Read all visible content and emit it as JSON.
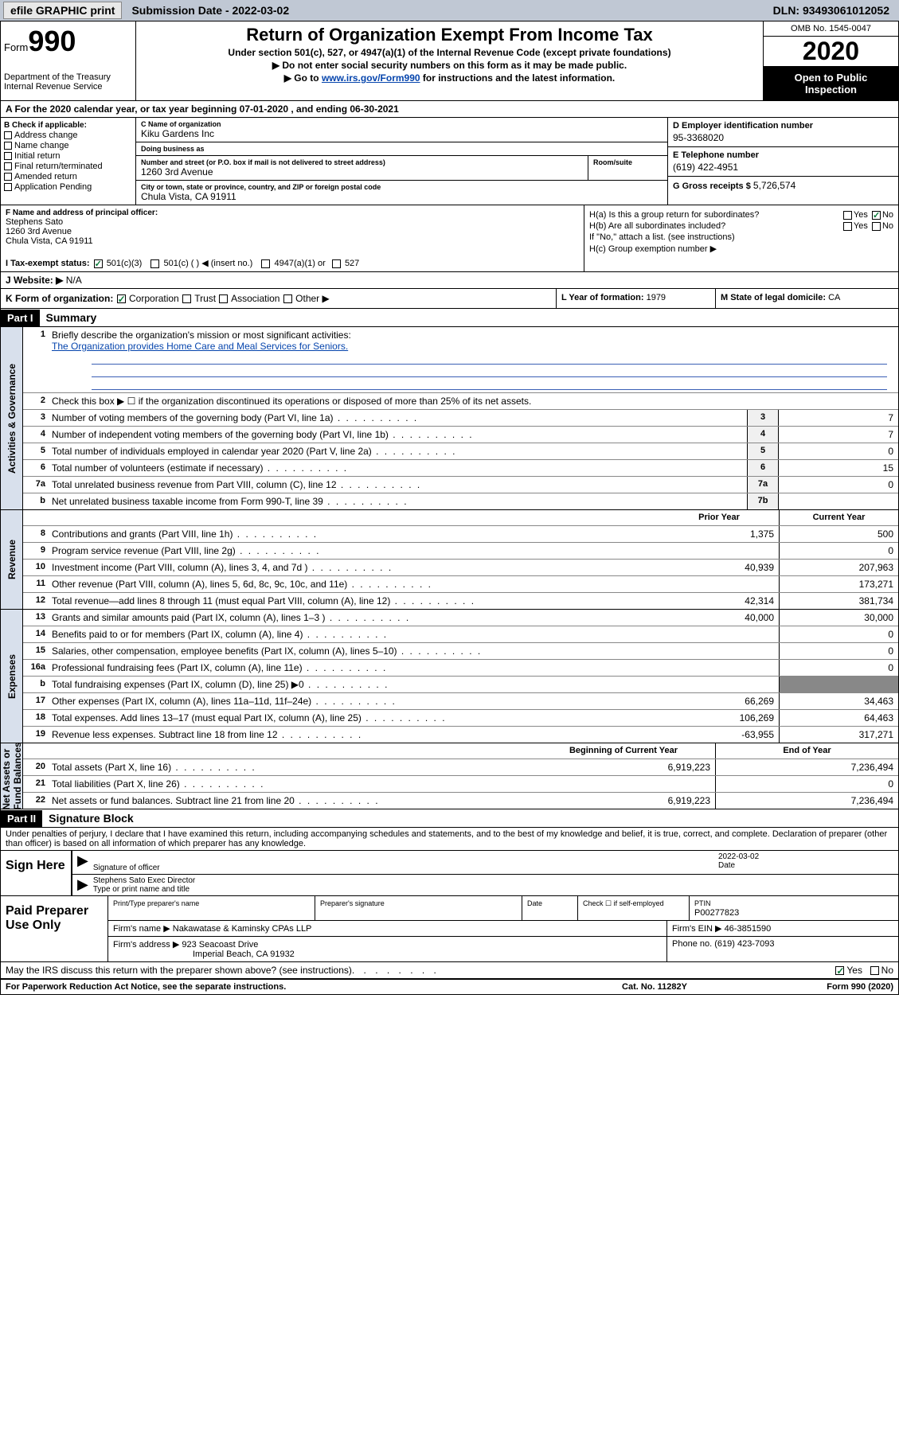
{
  "top": {
    "efile": "efile GRAPHIC print",
    "submission": "Submission Date - 2022-03-02",
    "dln": "DLN: 93493061012052"
  },
  "header": {
    "form_label": "Form",
    "form_num": "990",
    "dept": "Department of the Treasury\nInternal Revenue Service",
    "title": "Return of Organization Exempt From Income Tax",
    "sub1": "Under section 501(c), 527, or 4947(a)(1) of the Internal Revenue Code (except private foundations)",
    "sub2": "▶ Do not enter social security numbers on this form as it may be made public.",
    "sub3_pre": "▶ Go to ",
    "sub3_link": "www.irs.gov/Form990",
    "sub3_post": " for instructions and the latest information.",
    "omb": "OMB No. 1545-0047",
    "year": "2020",
    "open": "Open to Public Inspection"
  },
  "yearline": "A  For the 2020 calendar year, or tax year beginning 07-01-2020    , and ending 06-30-2021",
  "B": {
    "label": "B Check if applicable:",
    "opts": [
      "Address change",
      "Name change",
      "Initial return",
      "Final return/terminated",
      "Amended return",
      "Application Pending"
    ]
  },
  "C": {
    "name_lbl": "C Name of organization",
    "name_val": "Kiku Gardens Inc",
    "dba_lbl": "Doing business as",
    "dba_val": "",
    "street_lbl": "Number and street (or P.O. box if mail is not delivered to street address)",
    "street_val": "1260 3rd Avenue",
    "room_lbl": "Room/suite",
    "city_lbl": "City or town, state or province, country, and ZIP or foreign postal code",
    "city_val": "Chula Vista, CA  91911"
  },
  "D": {
    "lbl": "D Employer identification number",
    "val": "95-3368020"
  },
  "E": {
    "lbl": "E Telephone number",
    "val": "(619) 422-4951"
  },
  "G": {
    "lbl": "G Gross receipts $",
    "val": "5,726,574"
  },
  "F": {
    "lbl": "F Name and address of principal officer:",
    "name": "Stephens Sato",
    "addr1": "1260 3rd Avenue",
    "addr2": "Chula Vista, CA  91911"
  },
  "H": {
    "a": "H(a)  Is this a group return for subordinates?",
    "a_no": true,
    "b": "H(b)  Are all subordinates included?",
    "b_note": "If \"No,\" attach a list. (see instructions)",
    "c": "H(c)  Group exemption number ▶"
  },
  "I": {
    "lbl": "I    Tax-exempt status:",
    "opt1": "501(c)(3)",
    "opt2": "501(c) (  ) ◀ (insert no.)",
    "opt3": "4947(a)(1) or",
    "opt4": "527"
  },
  "J": {
    "lbl": "J    Website: ▶",
    "val": "N/A"
  },
  "K": {
    "lbl": "K Form of organization:",
    "corp": "Corporation",
    "trust": "Trust",
    "assoc": "Association",
    "other": "Other ▶"
  },
  "L": {
    "lbl": "L Year of formation:",
    "val": "1979"
  },
  "M": {
    "lbl": "M State of legal domicile:",
    "val": "CA"
  },
  "part1": {
    "num": "Part I",
    "name": "Summary"
  },
  "summary": {
    "q1": "Briefly describe the organization's mission or most significant activities:",
    "q1a": "The Organization provides Home Care and Meal Services for Seniors.",
    "q2": "Check this box ▶ ☐  if the organization discontinued its operations or disposed of more than 25% of its net assets.",
    "lines_ag": [
      {
        "n": "3",
        "t": "Number of voting members of the governing body (Part VI, line 1a)",
        "num": "3",
        "v": "7"
      },
      {
        "n": "4",
        "t": "Number of independent voting members of the governing body (Part VI, line 1b)",
        "num": "4",
        "v": "7"
      },
      {
        "n": "5",
        "t": "Total number of individuals employed in calendar year 2020 (Part V, line 2a)",
        "num": "5",
        "v": "0"
      },
      {
        "n": "6",
        "t": "Total number of volunteers (estimate if necessary)",
        "num": "6",
        "v": "15"
      },
      {
        "n": "7a",
        "t": "Total unrelated business revenue from Part VIII, column (C), line 12",
        "num": "7a",
        "v": "0"
      },
      {
        "n": "b",
        "t": "Net unrelated business taxable income from Form 990-T, line 39",
        "num": "7b",
        "v": ""
      }
    ],
    "hdr_prior": "Prior Year",
    "hdr_curr": "Current Year",
    "rev": [
      {
        "n": "8",
        "t": "Contributions and grants (Part VIII, line 1h)",
        "p": "1,375",
        "c": "500"
      },
      {
        "n": "9",
        "t": "Program service revenue (Part VIII, line 2g)",
        "p": "",
        "c": "0"
      },
      {
        "n": "10",
        "t": "Investment income (Part VIII, column (A), lines 3, 4, and 7d )",
        "p": "40,939",
        "c": "207,963"
      },
      {
        "n": "11",
        "t": "Other revenue (Part VIII, column (A), lines 5, 6d, 8c, 9c, 10c, and 11e)",
        "p": "",
        "c": "173,271"
      },
      {
        "n": "12",
        "t": "Total revenue—add lines 8 through 11 (must equal Part VIII, column (A), line 12)",
        "p": "42,314",
        "c": "381,734"
      }
    ],
    "exp": [
      {
        "n": "13",
        "t": "Grants and similar amounts paid (Part IX, column (A), lines 1–3 )",
        "p": "40,000",
        "c": "30,000"
      },
      {
        "n": "14",
        "t": "Benefits paid to or for members (Part IX, column (A), line 4)",
        "p": "",
        "c": "0"
      },
      {
        "n": "15",
        "t": "Salaries, other compensation, employee benefits (Part IX, column (A), lines 5–10)",
        "p": "",
        "c": "0"
      },
      {
        "n": "16a",
        "t": "Professional fundraising fees (Part IX, column (A), line 11e)",
        "p": "",
        "c": "0"
      },
      {
        "n": "b",
        "t": "Total fundraising expenses (Part IX, column (D), line 25) ▶0",
        "p": "gray",
        "c": "gray"
      },
      {
        "n": "17",
        "t": "Other expenses (Part IX, column (A), lines 11a–11d, 11f–24e)",
        "p": "66,269",
        "c": "34,463"
      },
      {
        "n": "18",
        "t": "Total expenses. Add lines 13–17 (must equal Part IX, column (A), line 25)",
        "p": "106,269",
        "c": "64,463"
      },
      {
        "n": "19",
        "t": "Revenue less expenses. Subtract line 18 from line 12",
        "p": "-63,955",
        "c": "317,271"
      }
    ],
    "hdr_beg": "Beginning of Current Year",
    "hdr_end": "End of Year",
    "net": [
      {
        "n": "20",
        "t": "Total assets (Part X, line 16)",
        "p": "6,919,223",
        "c": "7,236,494"
      },
      {
        "n": "21",
        "t": "Total liabilities (Part X, line 26)",
        "p": "",
        "c": "0"
      },
      {
        "n": "22",
        "t": "Net assets or fund balances. Subtract line 21 from line 20",
        "p": "6,919,223",
        "c": "7,236,494"
      }
    ]
  },
  "part2": {
    "num": "Part II",
    "name": "Signature Block"
  },
  "decl": "Under penalties of perjury, I declare that I have examined this return, including accompanying schedules and statements, and to the best of my knowledge and belief, it is true, correct, and complete. Declaration of preparer (other than officer) is based on all information of which preparer has any knowledge.",
  "sig": {
    "here": "Sign Here",
    "sig_lbl": "Signature of officer",
    "date_lbl": "Date",
    "date_val": "2022-03-02",
    "name_val": "Stephens Sato  Exec Director",
    "name_lbl": "Type or print name and title"
  },
  "prep": {
    "lbl": "Paid Preparer Use Only",
    "r1c1": "Print/Type preparer's name",
    "r1c2": "Preparer's signature",
    "r1c3": "Date",
    "r1c4_lbl": "Check ☐ if self-employed",
    "r1c5_lbl": "PTIN",
    "r1c5_val": "P00277823",
    "firm_lbl": "Firm's name    ▶",
    "firm_val": "Nakawatase & Kaminsky CPAs LLP",
    "ein_lbl": "Firm's EIN ▶",
    "ein_val": "46-3851590",
    "addr_lbl": "Firm's address ▶",
    "addr_val": "923 Seacoast Drive",
    "addr_val2": "Imperial Beach, CA  91932",
    "phone_lbl": "Phone no.",
    "phone_val": "(619) 423-7093"
  },
  "disc": "May the IRS discuss this return with the preparer shown above? (see instructions)",
  "foot": {
    "f1": "For Paperwork Reduction Act Notice, see the separate instructions.",
    "f2": "Cat. No. 11282Y",
    "f3": "Form 990 (2020)"
  }
}
